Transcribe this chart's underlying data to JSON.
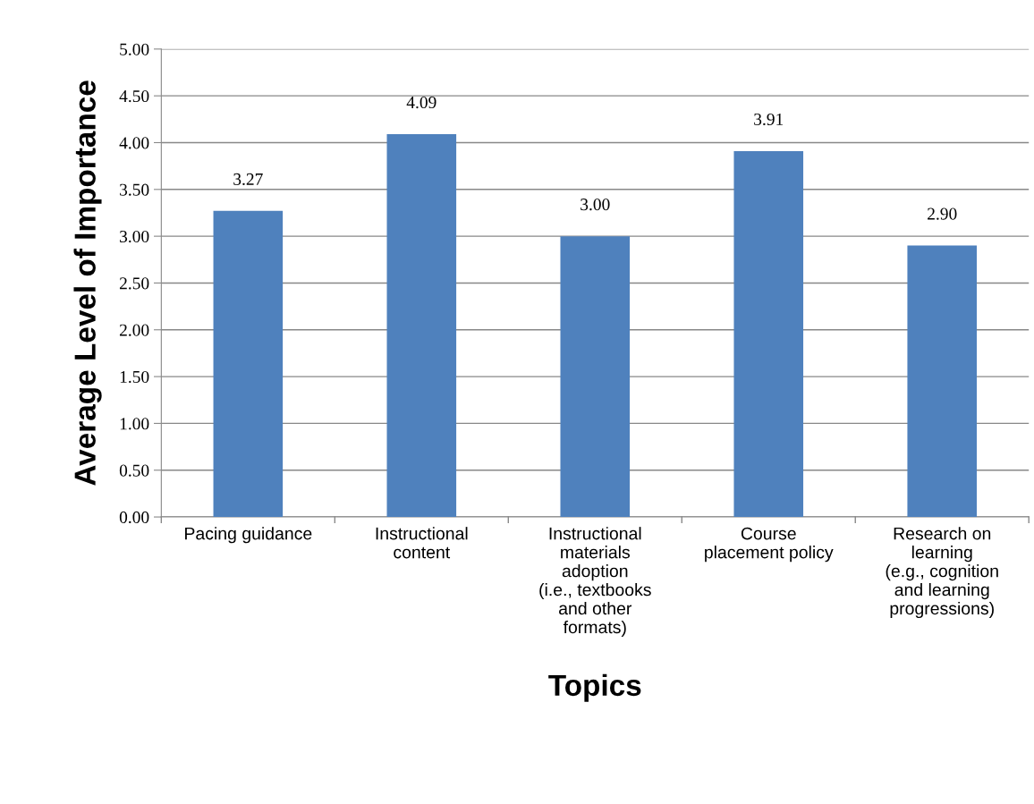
{
  "chart_data": {
    "type": "bar",
    "xlabel": "Topics",
    "ylabel": "Average Level of Importance",
    "categories": [
      "Pacing guidance",
      "Instructional\ncontent",
      "Instructional\nmaterials\nadoption\n(i.e., textbooks\nand other\nformats)",
      "Course\nplacement policy",
      "Research on\nlearning\n(e.g., cognition\nand learning\nprogressions)"
    ],
    "values": [
      3.27,
      4.09,
      3.0,
      3.91,
      2.9
    ],
    "color": "#4f81bd",
    "ylim": [
      0,
      5
    ],
    "yticks": [
      {
        "value": 0,
        "label": "0.00"
      },
      {
        "value": 0.5,
        "label": "0.50"
      },
      {
        "value": 1,
        "label": "1.00"
      },
      {
        "value": 1.5,
        "label": "1.50"
      },
      {
        "value": 2,
        "label": "2.00"
      },
      {
        "value": 2.5,
        "label": "2.50"
      },
      {
        "value": 3,
        "label": "3.00"
      },
      {
        "value": 3.5,
        "label": "3.50"
      },
      {
        "value": 4,
        "label": "4.00"
      },
      {
        "value": 4.5,
        "label": "4.50"
      },
      {
        "value": 5,
        "label": "5.00"
      }
    ],
    "value_labels": [
      "3.27",
      "4.09",
      "3.00",
      "3.91",
      "2.90"
    ],
    "grid": "y",
    "legend": false
  }
}
